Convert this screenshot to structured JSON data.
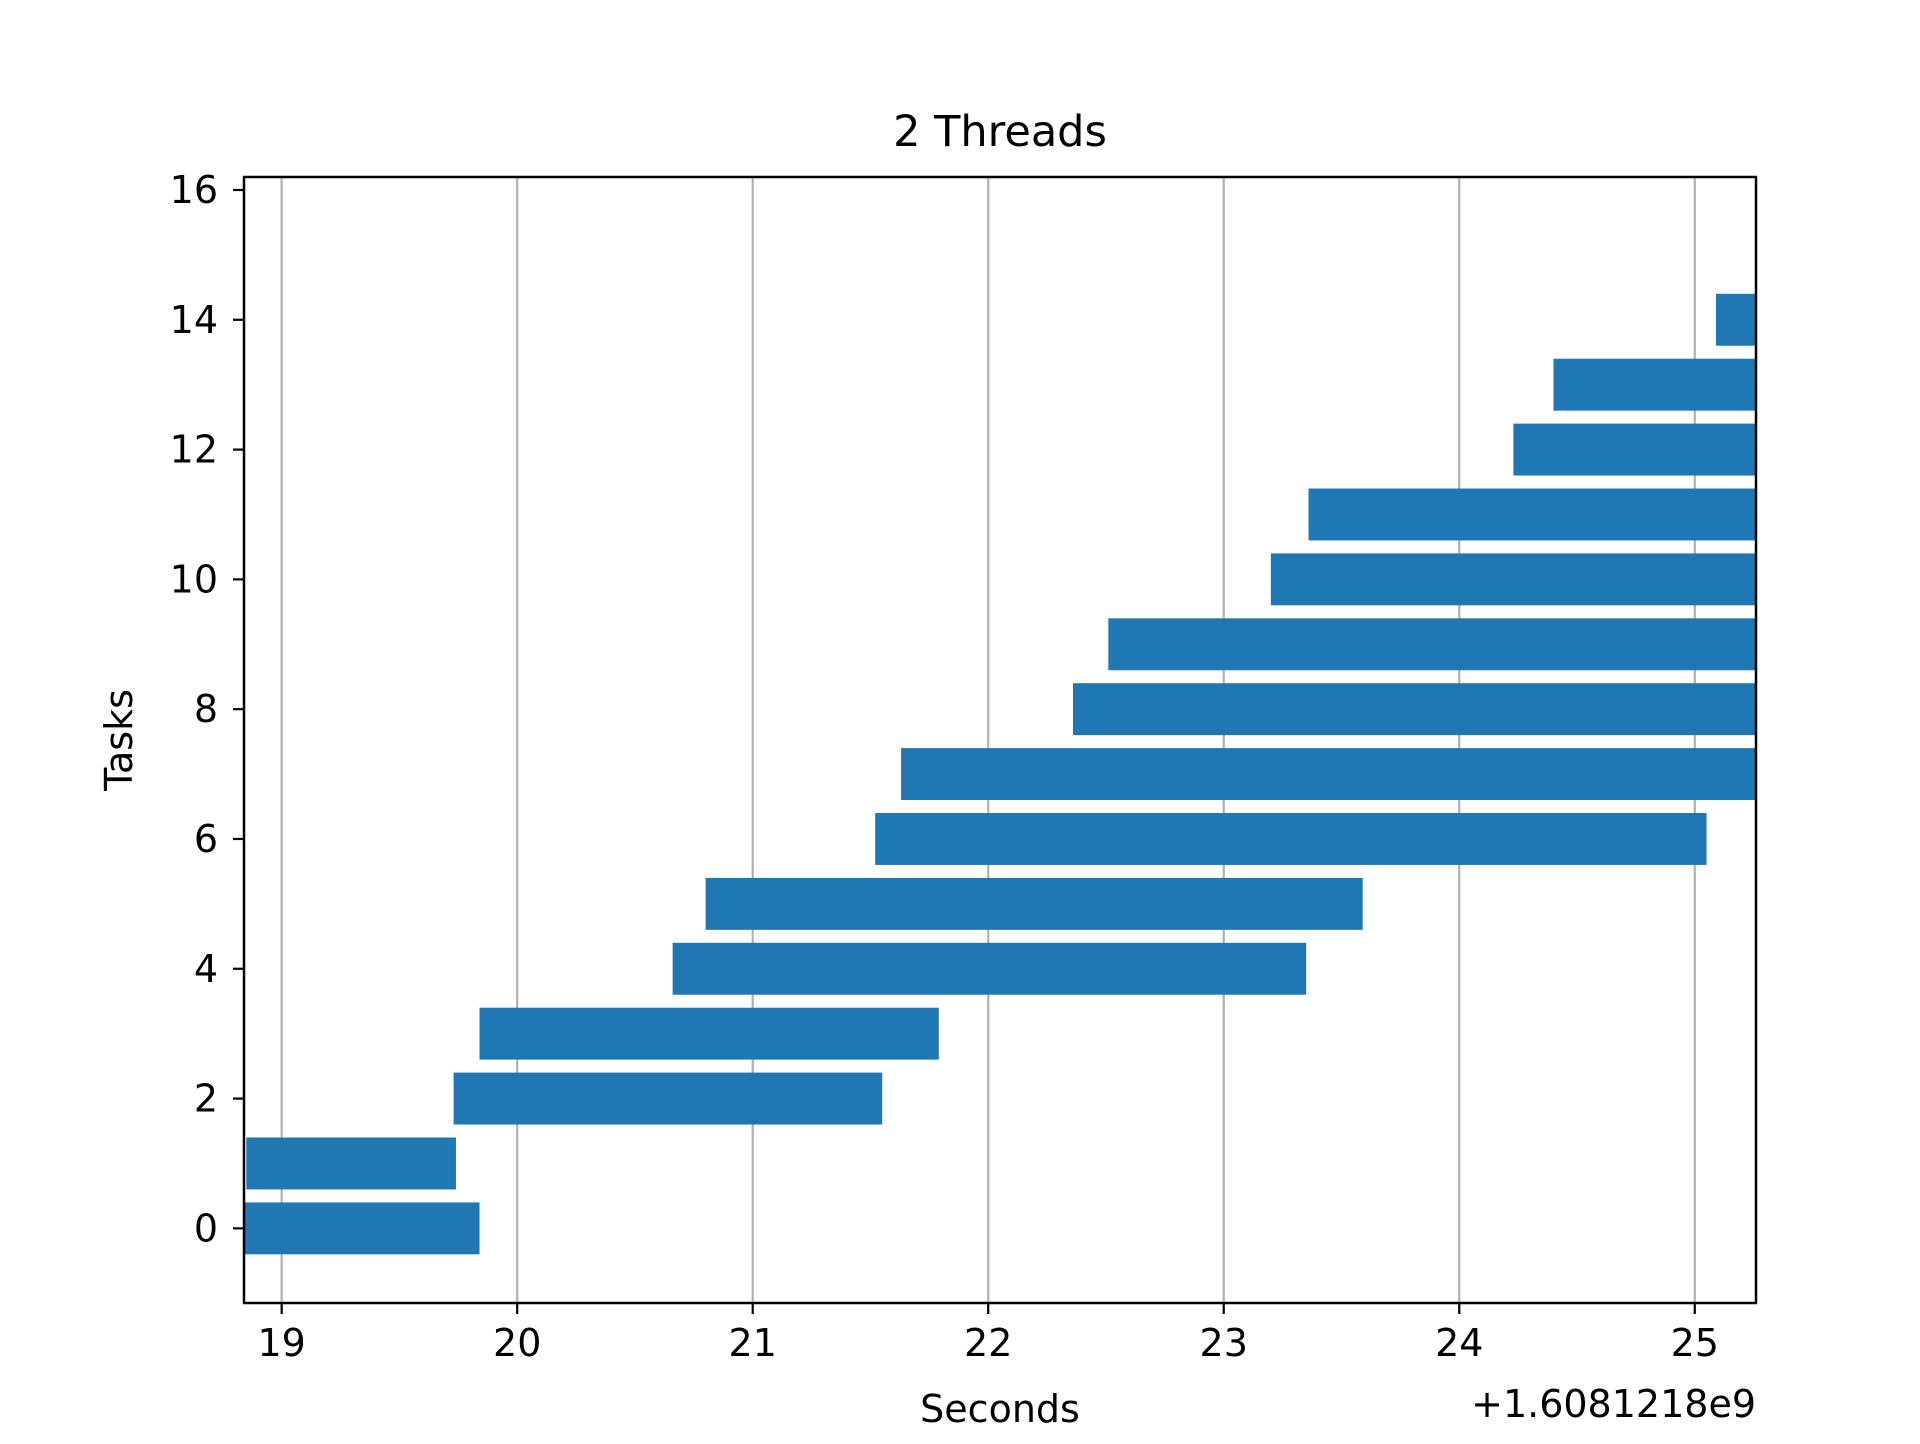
{
  "chart_data": {
    "type": "bar",
    "orientation": "horizontal",
    "title": "2 Threads",
    "xlabel": "Seconds",
    "ylabel": "Tasks",
    "x_offset_label": "+1.6081218e9",
    "xlim": [
      18.84,
      25.26
    ],
    "ylim": [
      -1.15,
      16.2
    ],
    "x_ticks": [
      "19",
      "20",
      "21",
      "22",
      "23",
      "24",
      "25"
    ],
    "y_ticks": [
      "0",
      "2",
      "4",
      "6",
      "8",
      "10",
      "12",
      "14",
      "16"
    ],
    "grid": "x-axis vertical lines",
    "bar_color": "#1f77b4",
    "bars": [
      {
        "task": 0,
        "start": 18.84,
        "end": 19.84
      },
      {
        "task": 1,
        "start": 18.85,
        "end": 19.74
      },
      {
        "task": 2,
        "start": 19.73,
        "end": 21.55
      },
      {
        "task": 3,
        "start": 19.84,
        "end": 21.79
      },
      {
        "task": 4,
        "start": 20.66,
        "end": 23.35
      },
      {
        "task": 5,
        "start": 20.8,
        "end": 23.59
      },
      {
        "task": 6,
        "start": 21.52,
        "end": 25.05
      },
      {
        "task": 7,
        "start": 21.63,
        "end": 25.26
      },
      {
        "task": 8,
        "start": 22.36,
        "end": 25.26
      },
      {
        "task": 9,
        "start": 22.51,
        "end": 25.26
      },
      {
        "task": 10,
        "start": 23.2,
        "end": 25.26
      },
      {
        "task": 11,
        "start": 23.36,
        "end": 25.26
      },
      {
        "task": 12,
        "start": 24.23,
        "end": 25.26
      },
      {
        "task": 13,
        "start": 24.4,
        "end": 25.26
      },
      {
        "task": 14,
        "start": 25.09,
        "end": 25.26
      }
    ]
  }
}
